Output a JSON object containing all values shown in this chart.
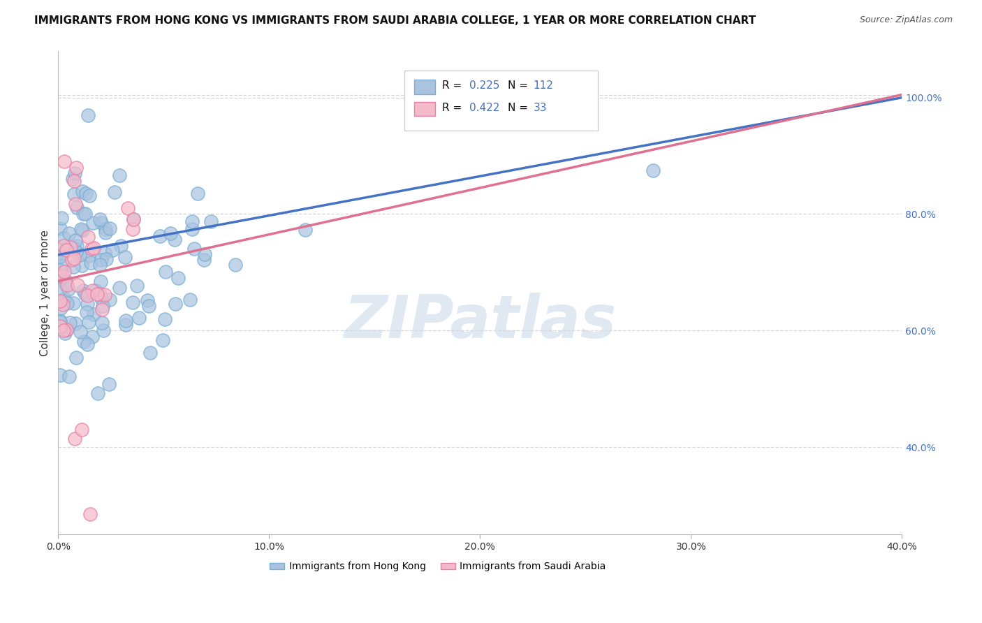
{
  "title": "IMMIGRANTS FROM HONG KONG VS IMMIGRANTS FROM SAUDI ARABIA COLLEGE, 1 YEAR OR MORE CORRELATION CHART",
  "source": "Source: ZipAtlas.com",
  "ylabel": "College, 1 year or more",
  "xlim": [
    0.0,
    0.4
  ],
  "ylim": [
    0.25,
    1.08
  ],
  "xtick_labels": [
    "0.0%",
    "10.0%",
    "20.0%",
    "30.0%",
    "40.0%"
  ],
  "xtick_vals": [
    0.0,
    0.1,
    0.2,
    0.3,
    0.4
  ],
  "ytick_labels": [
    "40.0%",
    "60.0%",
    "80.0%",
    "100.0%"
  ],
  "ytick_vals": [
    0.4,
    0.6,
    0.8,
    1.0
  ],
  "hk_color": "#aac4e0",
  "sa_color": "#f5baca",
  "hk_edge_color": "#7aafd4",
  "sa_edge_color": "#e880a5",
  "hk_line_color": "#4472c4",
  "sa_line_color": "#e07090",
  "hk_R": 0.225,
  "hk_N": 112,
  "sa_R": 0.422,
  "sa_N": 33,
  "legend_label_hk": "Immigrants from Hong Kong",
  "legend_label_sa": "Immigrants from Saudi Arabia",
  "watermark": "ZIPatlas",
  "grid_color": "#cccccc",
  "background_color": "#ffffff",
  "title_fontsize": 11,
  "axis_label_fontsize": 11,
  "hk_line_x0": 0.0,
  "hk_line_y0": 0.73,
  "hk_line_x1": 0.4,
  "hk_line_y1": 1.0,
  "sa_line_x0": 0.0,
  "sa_line_y0": 0.685,
  "sa_line_x1": 0.4,
  "sa_line_y1": 1.005
}
